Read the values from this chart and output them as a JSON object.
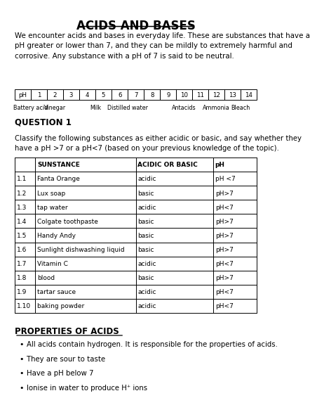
{
  "title": "ACIDS AND BASES",
  "intro_text": "We encounter acids and bases in everyday life. These are substances that have a\npH greater or lower than 7, and they can be mildly to extremely harmful and\ncorrosive. Any substance with a pH of 7 is said to be neutral.",
  "ph_scale": [
    "pH",
    "1",
    "2",
    "3",
    "4",
    "5",
    "6",
    "7",
    "8",
    "9",
    "10",
    "11",
    "12",
    "13",
    "14"
  ],
  "question1_title": "QUESTION 1",
  "question1_text": "Classify the following substances as either acidic or basic, and say whether they\nhave a pH >7 or a pH<7 (based on your previous knowledge of the topic).",
  "table_headers": [
    "",
    "SUNSTANCE",
    "ACIDIC OR BASIC",
    "pH"
  ],
  "table_rows": [
    [
      "1.1",
      "Fanta Orange",
      "acidic",
      "pH <7"
    ],
    [
      "1.2",
      "Lux soap",
      "basic",
      "pH>7"
    ],
    [
      "1.3",
      "tap water",
      "acidic",
      "pH<7"
    ],
    [
      "1.4",
      "Colgate toothpaste",
      "basic",
      "pH>7"
    ],
    [
      "1.5",
      "Handy Andy",
      "basic",
      "pH>7"
    ],
    [
      "1.6",
      "Sunlight dishwashing liquid",
      "basic",
      "pH>7"
    ],
    [
      "1.7",
      "Vitamin C",
      "acidic",
      "pH<7"
    ],
    [
      "1.8",
      "blood",
      "basic",
      "pH>7"
    ],
    [
      "1.9",
      "tartar sauce",
      "acidic",
      "pH<7"
    ],
    [
      "1.10",
      "baking powder",
      "acidic",
      "pH<7"
    ]
  ],
  "properties_title": "PROPERTIES OF ACIDS",
  "bullet_points": [
    "All acids contain hydrogen. It is responsible for the properties of acids.",
    "They are sour to taste",
    "Have a pH below 7",
    "Ionise in water to produce H⁺ ions"
  ],
  "ph_label_positions": [
    [
      "Battery acid",
      1.0
    ],
    [
      "Vinegar",
      2.5
    ],
    [
      "Milk",
      5.0
    ],
    [
      "Distilled water",
      7.0
    ],
    [
      "Antacids",
      10.5
    ],
    [
      "Ammonia",
      12.5
    ],
    [
      "Bleach",
      14.0
    ]
  ],
  "bg_color": "#ffffff",
  "text_color": "#000000"
}
